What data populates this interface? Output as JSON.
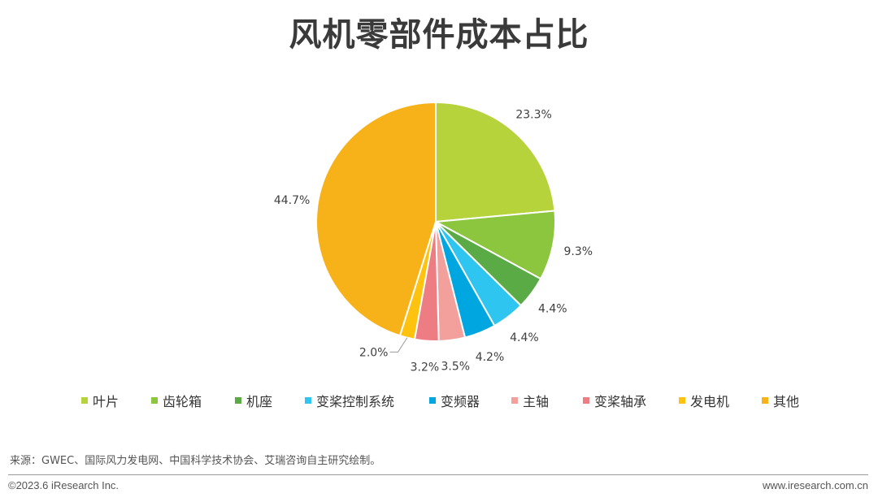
{
  "title": "风机零部件成本占比",
  "chart_data": {
    "type": "pie",
    "title": "风机零部件成本占比",
    "slices": [
      {
        "name": "叶片",
        "value": 23.3,
        "label": "23.3%",
        "color": "#b6d33b"
      },
      {
        "name": "齿轮箱",
        "value": 9.3,
        "label": "9.3%",
        "color": "#8cc63f"
      },
      {
        "name": "机座",
        "value": 4.4,
        "label": "4.4%",
        "color": "#5aab46"
      },
      {
        "name": "变桨控制系统",
        "value": 4.4,
        "label": "4.4%",
        "color": "#2ec6f0"
      },
      {
        "name": "变频器",
        "value": 4.2,
        "label": "4.2%",
        "color": "#00a6e0"
      },
      {
        "name": "主轴",
        "value": 3.5,
        "label": "3.5%",
        "color": "#f39f9c"
      },
      {
        "name": "变桨轴承",
        "value": 3.2,
        "label": "3.2%",
        "color": "#ee7d83"
      },
      {
        "name": "发电机",
        "value": 2.0,
        "label": "2.0%",
        "color": "#ffc20e"
      },
      {
        "name": "其他",
        "value": 44.7,
        "label": "44.7%",
        "color": "#f7b219"
      }
    ],
    "legend_position": "bottom"
  },
  "footer": {
    "source": "来源：GWEC、国际风力发电网、中国科学技术协会、艾瑞咨询自主研究绘制。",
    "copyright": "©2023.6 iResearch Inc.",
    "website": "www.iresearch.com.cn"
  }
}
